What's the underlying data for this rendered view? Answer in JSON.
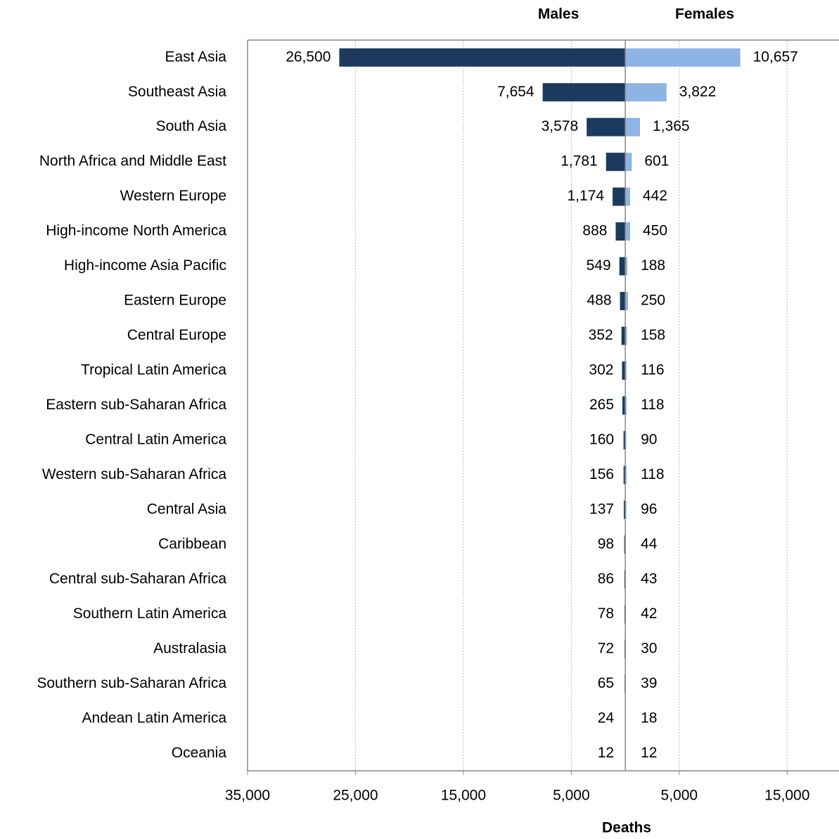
{
  "chart_data": {
    "type": "butterfly",
    "categories": [
      "East Asia",
      "Southeast Asia",
      "South Asia",
      "North Africa and Middle East",
      "Western Europe",
      "High-income North America",
      "High-income Asia Pacific",
      "Eastern Europe",
      "Central Europe",
      "Tropical Latin America",
      "Eastern sub-Saharan Africa",
      "Central Latin America",
      "Western sub-Saharan Africa",
      "Central Asia",
      "Caribbean",
      "Central sub-Saharan Africa",
      "Southern Latin America",
      "Australasia",
      "Southern sub-Saharan Africa",
      "Andean Latin America",
      "Oceania"
    ],
    "series": [
      {
        "name": "Males",
        "color": "#1c3a5e",
        "side": "left",
        "values": [
          26500,
          7654,
          3578,
          1781,
          1174,
          888,
          549,
          488,
          352,
          302,
          265,
          160,
          156,
          137,
          98,
          86,
          78,
          72,
          65,
          24,
          12
        ],
        "value_labels": [
          "26,500",
          "7,654",
          "3,578",
          "1,781",
          "1,174",
          "888",
          "549",
          "488",
          "352",
          "302",
          "265",
          "160",
          "156",
          "137",
          "98",
          "86",
          "78",
          "72",
          "65",
          "24",
          "12"
        ]
      },
      {
        "name": "Females",
        "color": "#8db4e2",
        "side": "right",
        "values": [
          10657,
          3822,
          1365,
          601,
          442,
          450,
          188,
          250,
          158,
          116,
          118,
          90,
          118,
          96,
          44,
          43,
          42,
          30,
          39,
          18,
          12
        ],
        "value_labels": [
          "10,657",
          "3,822",
          "1,365",
          "601",
          "442",
          "450",
          "188",
          "250",
          "158",
          "116",
          "118",
          "90",
          "118",
          "96",
          "44",
          "43",
          "42",
          "30",
          "39",
          "18",
          "12"
        ]
      }
    ],
    "x_label": "Deaths",
    "xlim": [
      -35000,
      20000
    ],
    "xticks": [
      {
        "value": -35000,
        "label": "35,000"
      },
      {
        "value": -25000,
        "label": "25,000"
      },
      {
        "value": -15000,
        "label": "15,000"
      },
      {
        "value": -5000,
        "label": "5,000"
      },
      {
        "value": 5000,
        "label": "5,000"
      },
      {
        "value": 15000,
        "label": "15,000"
      }
    ],
    "grid": true
  }
}
